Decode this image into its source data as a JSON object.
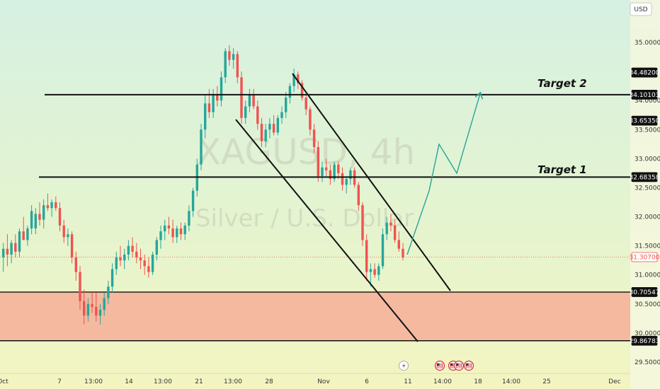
{
  "chart_data": {
    "type": "candlestick",
    "symbol": "XAGUSD",
    "timeframe": "4h",
    "description": "Silver / U.S. Dollar",
    "currency": "USD",
    "ylim": [
      29.4,
      35.3
    ],
    "y_ticks": [
      "29.50000",
      "30.00000",
      "30.50000",
      "31.00000",
      "31.50000",
      "32.00000",
      "32.50000",
      "33.00000",
      "33.50000",
      "34.00000",
      "35.00000"
    ],
    "x_ticks": [
      "Oct",
      "7",
      "13:00",
      "14",
      "13:00",
      "21",
      "13:00",
      "28",
      "Nov",
      "6",
      "11",
      "14:00",
      "18",
      "14:00",
      "25",
      "Dec"
    ],
    "price_labels": [
      {
        "value": "34.48200",
        "style": "dark"
      },
      {
        "value": "34.10103",
        "style": "dark"
      },
      {
        "value": "33.65350",
        "style": "dark"
      },
      {
        "value": "32.68358",
        "style": "dark"
      },
      {
        "value": "31.30700",
        "style": "current"
      },
      {
        "value": "30.70547",
        "style": "dark"
      },
      {
        "value": "29.86783",
        "style": "dark"
      }
    ],
    "levels": [
      {
        "name": "Target 2",
        "value": 34.101
      },
      {
        "name": "Target 1",
        "value": 32.684
      }
    ],
    "zone": {
      "top": 30.705,
      "bottom": 29.868
    },
    "current_price": 31.307,
    "projection_path": [
      31.35,
      32.45,
      33.25,
      32.75,
      34.12
    ],
    "candles": [
      [
        31.3,
        31.55,
        31.05,
        31.45
      ],
      [
        31.45,
        31.7,
        31.15,
        31.35
      ],
      [
        31.35,
        31.6,
        31.2,
        31.55
      ],
      [
        31.55,
        31.7,
        31.3,
        31.4
      ],
      [
        31.4,
        31.8,
        31.3,
        31.75
      ],
      [
        31.75,
        32.0,
        31.6,
        31.6
      ],
      [
        31.6,
        31.85,
        31.5,
        31.8
      ],
      [
        31.8,
        32.2,
        31.7,
        32.1
      ],
      [
        31.8,
        32.15,
        31.7,
        32.05
      ],
      [
        32.05,
        32.25,
        31.85,
        31.95
      ],
      [
        31.95,
        32.3,
        31.8,
        32.2
      ],
      [
        32.2,
        32.4,
        32.1,
        32.15
      ],
      [
        32.15,
        32.3,
        32.0,
        32.25
      ],
      [
        32.25,
        32.35,
        32.1,
        32.15
      ],
      [
        32.15,
        32.25,
        31.75,
        31.85
      ],
      [
        31.85,
        31.95,
        31.55,
        31.65
      ],
      [
        31.65,
        31.8,
        31.5,
        31.7
      ],
      [
        31.7,
        31.75,
        31.2,
        31.3
      ],
      [
        31.3,
        31.4,
        30.9,
        31.05
      ],
      [
        31.05,
        31.15,
        30.4,
        30.55
      ],
      [
        30.55,
        30.75,
        30.15,
        30.3
      ],
      [
        30.3,
        30.6,
        30.2,
        30.5
      ],
      [
        30.5,
        30.7,
        30.35,
        30.45
      ],
      [
        30.45,
        30.7,
        30.2,
        30.3
      ],
      [
        30.3,
        30.5,
        30.15,
        30.4
      ],
      [
        30.4,
        30.7,
        30.3,
        30.6
      ],
      [
        30.6,
        30.9,
        30.5,
        30.8
      ],
      [
        30.8,
        31.2,
        30.7,
        31.1
      ],
      [
        31.1,
        31.4,
        31.0,
        31.3
      ],
      [
        31.3,
        31.5,
        31.15,
        31.25
      ],
      [
        31.25,
        31.45,
        31.1,
        31.35
      ],
      [
        31.35,
        31.6,
        31.25,
        31.5
      ],
      [
        31.5,
        31.65,
        31.3,
        31.4
      ],
      [
        31.4,
        31.55,
        31.2,
        31.3
      ],
      [
        31.3,
        31.45,
        31.1,
        31.25
      ],
      [
        31.25,
        31.35,
        31.0,
        31.15
      ],
      [
        31.15,
        31.3,
        30.95,
        31.05
      ],
      [
        31.05,
        31.4,
        31.0,
        31.35
      ],
      [
        31.35,
        31.65,
        31.25,
        31.6
      ],
      [
        31.6,
        31.85,
        31.45,
        31.75
      ],
      [
        31.75,
        31.95,
        31.6,
        31.85
      ],
      [
        31.85,
        32.0,
        31.7,
        31.8
      ],
      [
        31.8,
        31.95,
        31.55,
        31.65
      ],
      [
        31.65,
        31.85,
        31.55,
        31.8
      ],
      [
        31.8,
        31.9,
        31.6,
        31.7
      ],
      [
        31.7,
        31.9,
        31.6,
        31.85
      ],
      [
        31.85,
        32.2,
        31.75,
        32.1
      ],
      [
        32.1,
        32.5,
        32.0,
        32.45
      ],
      [
        32.45,
        33.0,
        32.35,
        32.9
      ],
      [
        32.9,
        33.6,
        32.8,
        33.5
      ],
      [
        33.5,
        34.1,
        33.35,
        33.95
      ],
      [
        33.95,
        34.2,
        33.7,
        33.8
      ],
      [
        33.8,
        34.2,
        33.7,
        34.1
      ],
      [
        34.1,
        34.25,
        33.9,
        34.0
      ],
      [
        34.0,
        34.5,
        33.9,
        34.4
      ],
      [
        34.4,
        34.9,
        34.3,
        34.85
      ],
      [
        34.85,
        34.95,
        34.6,
        34.7
      ],
      [
        34.7,
        34.9,
        34.55,
        34.8
      ],
      [
        34.8,
        34.85,
        34.3,
        34.4
      ],
      [
        34.4,
        34.5,
        33.6,
        33.7
      ],
      [
        33.7,
        34.0,
        33.6,
        33.9
      ],
      [
        33.9,
        34.2,
        33.8,
        34.1
      ],
      [
        34.1,
        34.2,
        33.85,
        33.9
      ],
      [
        33.9,
        34.0,
        33.5,
        33.6
      ],
      [
        33.6,
        33.7,
        33.2,
        33.3
      ],
      [
        33.3,
        33.6,
        33.2,
        33.5
      ],
      [
        33.5,
        33.7,
        33.35,
        33.6
      ],
      [
        33.6,
        33.75,
        33.4,
        33.45
      ],
      [
        33.45,
        33.75,
        33.4,
        33.7
      ],
      [
        33.7,
        33.9,
        33.6,
        33.8
      ],
      [
        33.8,
        34.15,
        33.7,
        34.05
      ],
      [
        34.05,
        34.3,
        33.95,
        34.25
      ],
      [
        34.25,
        34.55,
        34.15,
        34.45
      ],
      [
        34.45,
        34.5,
        34.2,
        34.3
      ],
      [
        34.3,
        34.35,
        34.0,
        34.05
      ],
      [
        34.05,
        34.1,
        33.75,
        33.85
      ],
      [
        33.85,
        33.9,
        33.4,
        33.5
      ],
      [
        33.5,
        33.6,
        33.1,
        33.2
      ],
      [
        33.2,
        33.3,
        32.6,
        32.7
      ],
      [
        32.7,
        32.95,
        32.6,
        32.85
      ],
      [
        32.85,
        33.0,
        32.7,
        32.8
      ],
      [
        32.8,
        32.9,
        32.55,
        32.65
      ],
      [
        32.65,
        32.95,
        32.6,
        32.9
      ],
      [
        32.9,
        32.95,
        32.65,
        32.75
      ],
      [
        32.75,
        32.85,
        32.45,
        32.55
      ],
      [
        32.55,
        32.7,
        32.4,
        32.65
      ],
      [
        32.65,
        32.85,
        32.55,
        32.8
      ],
      [
        32.8,
        32.85,
        32.5,
        32.55
      ],
      [
        32.55,
        32.6,
        32.1,
        32.2
      ],
      [
        32.2,
        32.25,
        31.5,
        31.6
      ],
      [
        31.6,
        31.7,
        30.9,
        31.05
      ],
      [
        31.05,
        31.2,
        30.8,
        31.1
      ],
      [
        31.1,
        31.2,
        30.95,
        31.0
      ],
      [
        31.0,
        31.2,
        30.9,
        31.15
      ],
      [
        31.15,
        31.8,
        31.1,
        31.7
      ],
      [
        31.7,
        32.0,
        31.6,
        31.9
      ],
      [
        31.9,
        32.05,
        31.75,
        31.85
      ],
      [
        31.85,
        31.95,
        31.55,
        31.6
      ],
      [
        31.6,
        31.75,
        31.4,
        31.45
      ],
      [
        31.45,
        31.55,
        31.25,
        31.3
      ]
    ]
  },
  "annotations": {
    "target2_label": "Target 2",
    "target1_label": "Target 1",
    "watermark_symbol": "XAGUSD, 4h",
    "watermark_desc": "Silver / U.S. Dollar"
  },
  "colors": {
    "bg": "#f2f4c2",
    "up": "#26a69a",
    "down": "#ef5350",
    "zone": "#f4b59d",
    "projection": "#2aa395",
    "current": "#ef5350"
  },
  "icons": [
    "flash-icon",
    "us-flag-icon",
    "us-flag-icon",
    "us-flag-icon",
    "us-flag-icon"
  ]
}
